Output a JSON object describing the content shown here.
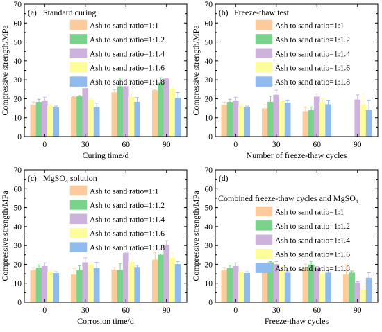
{
  "figure": {
    "legend_labels": [
      "Ash to sand ratio=1:1",
      "Ash to sand ratio=1:1.2",
      "Ash to sand ratio=1:1.4",
      "Ash to sand ratio=1:1.6",
      "Ash to sand ratio=1:1.8"
    ],
    "colors": [
      "#FDCB9B",
      "#7AD38B",
      "#CDB2DC",
      "#FDFD99",
      "#8FBBEE"
    ]
  },
  "chart_data": [
    {
      "type": "bar",
      "panel_label": "(a)",
      "title": "Standard curing",
      "xlabel": "Curing time/d",
      "ylabel": "Compressive strength/MPa",
      "categories": [
        "0",
        "30",
        "60",
        "90"
      ],
      "ylim": [
        0,
        70
      ],
      "yticks": [
        0,
        10,
        20,
        30,
        40,
        50,
        60,
        70
      ],
      "legend_placement": "top-center",
      "series": [
        {
          "name": "Ash to sand ratio=1:1",
          "values": [
            16.8,
            20.8,
            23.2,
            24.3
          ],
          "errors": [
            1.5,
            0.3,
            1.5,
            0.3
          ]
        },
        {
          "name": "Ash to sand ratio=1:1.2",
          "values": [
            18.2,
            21.2,
            26.5,
            28.3
          ],
          "errors": [
            1.5,
            0.4,
            4.5,
            2.8
          ]
        },
        {
          "name": "Ash to sand ratio=1:1.4",
          "values": [
            19.0,
            25.5,
            26.5,
            30.5
          ],
          "errors": [
            1.8,
            3.7,
            4.5,
            0.4
          ]
        },
        {
          "name": "Ash to sand ratio=1:1.6",
          "values": [
            16.0,
            19.5,
            20.8,
            25.2
          ],
          "errors": [
            1.0,
            0.7,
            2.0,
            0.8
          ]
        },
        {
          "name": "Ash to sand ratio=1:1.8",
          "values": [
            15.3,
            15.5,
            18.3,
            20.3
          ],
          "errors": [
            0.8,
            2.2,
            2.3,
            3.0
          ]
        }
      ]
    },
    {
      "type": "bar",
      "panel_label": "(b)",
      "title": "Freeze-thaw test",
      "xlabel": "Number of freeze-thaw cycles",
      "ylabel": "Compressive strength/MPa",
      "categories": [
        "0",
        "30",
        "60",
        "90"
      ],
      "ylim": [
        0,
        70
      ],
      "yticks": [
        0,
        10,
        20,
        30,
        40,
        50,
        60,
        70
      ],
      "legend_placement": "top-right",
      "series": [
        {
          "name": "Ash to sand ratio=1:1",
          "values": [
            16.8,
            14.8,
            13.3,
            null
          ],
          "errors": [
            1.5,
            2.0,
            2.2,
            null
          ]
        },
        {
          "name": "Ash to sand ratio=1:1.2",
          "values": [
            18.2,
            18.3,
            13.8,
            null
          ],
          "errors": [
            1.5,
            3.0,
            1.8,
            null
          ]
        },
        {
          "name": "Ash to sand ratio=1:1.4",
          "values": [
            19.0,
            22.0,
            21.0,
            19.5
          ],
          "errors": [
            1.8,
            2.5,
            1.5,
            2.5
          ]
        },
        {
          "name": "Ash to sand ratio=1:1.6",
          "values": [
            16.0,
            18.8,
            18.2,
            17.0
          ],
          "errors": [
            1.0,
            1.5,
            1.8,
            5.5
          ]
        },
        {
          "name": "Ash to sand ratio=1:1.8",
          "values": [
            15.3,
            17.8,
            17.0,
            14.0
          ],
          "errors": [
            0.8,
            1.5,
            2.2,
            5.3
          ]
        }
      ]
    },
    {
      "type": "bar",
      "panel_label": "(c)",
      "title": "MgSO4 solution",
      "title_main": "MgSO",
      "title_sub": "4",
      "title_tail": " solution",
      "xlabel": "Corrosion time/d",
      "ylabel": "Compressive strength/MPa",
      "categories": [
        "0",
        "30",
        "60",
        "90"
      ],
      "ylim": [
        0,
        70
      ],
      "yticks": [
        0,
        10,
        20,
        30,
        40,
        50,
        60,
        70
      ],
      "legend_placement": "top-center",
      "series": [
        {
          "name": "Ash to sand ratio=1:1",
          "values": [
            16.8,
            14.5,
            16.8,
            22.5
          ],
          "errors": [
            1.5,
            3.5,
            1.5,
            3.8
          ]
        },
        {
          "name": "Ash to sand ratio=1:1.2",
          "values": [
            18.2,
            16.8,
            17.0,
            25.0
          ],
          "errors": [
            1.5,
            2.5,
            3.5,
            0.5
          ]
        },
        {
          "name": "Ash to sand ratio=1:1.4",
          "values": [
            19.0,
            21.0,
            26.0,
            30.3
          ],
          "errors": [
            1.8,
            2.5,
            0.5,
            2.3
          ]
        },
        {
          "name": "Ash to sand ratio=1:1.6",
          "values": [
            16.0,
            19.8,
            21.0,
            23.5
          ],
          "errors": [
            1.0,
            1.5,
            0.8,
            2.5
          ]
        },
        {
          "name": "Ash to sand ratio=1:1.8",
          "values": [
            15.3,
            18.0,
            18.5,
            20.0
          ],
          "errors": [
            0.8,
            3.0,
            1.0,
            1.5
          ]
        }
      ]
    },
    {
      "type": "bar",
      "panel_label": "(d)",
      "title": "Combined freeze-thaw cycles and MgSO4",
      "title_main": "Combined freeze-thaw cycles and MgSO",
      "title_sub": "4",
      "title_tail": "",
      "xlabel": "Freeze-thaw cycles",
      "ylabel": "Compressive strength/MPa",
      "categories": [
        "0",
        "30",
        "60",
        "90"
      ],
      "ylim": [
        0,
        70
      ],
      "yticks": [
        0,
        10,
        20,
        30,
        40,
        50,
        60,
        70
      ],
      "legend_placement": "top-right",
      "series": [
        {
          "name": "Ash to sand ratio=1:1",
          "values": [
            16.8,
            18.2,
            18.3,
            14.5
          ],
          "errors": [
            1.5,
            0.8,
            1.8,
            5.2
          ]
        },
        {
          "name": "Ash to sand ratio=1:1.2",
          "values": [
            18.0,
            21.0,
            19.8,
            15.5
          ],
          "errors": [
            1.5,
            0.5,
            1.8,
            1.0
          ]
        },
        {
          "name": "Ash to sand ratio=1:1.4",
          "values": [
            19.0,
            20.0,
            17.8,
            10.3
          ],
          "errors": [
            1.8,
            1.5,
            1.0,
            0.5
          ]
        },
        {
          "name": "Ash to sand ratio=1:1.6",
          "values": [
            16.0,
            16.8,
            14.8,
            6.5
          ],
          "errors": [
            1.0,
            2.0,
            1.2,
            2.0
          ]
        },
        {
          "name": "Ash to sand ratio=1:1.8",
          "values": [
            15.3,
            15.5,
            15.5,
            12.8
          ],
          "errors": [
            0.8,
            1.0,
            1.5,
            2.8
          ]
        }
      ]
    }
  ]
}
